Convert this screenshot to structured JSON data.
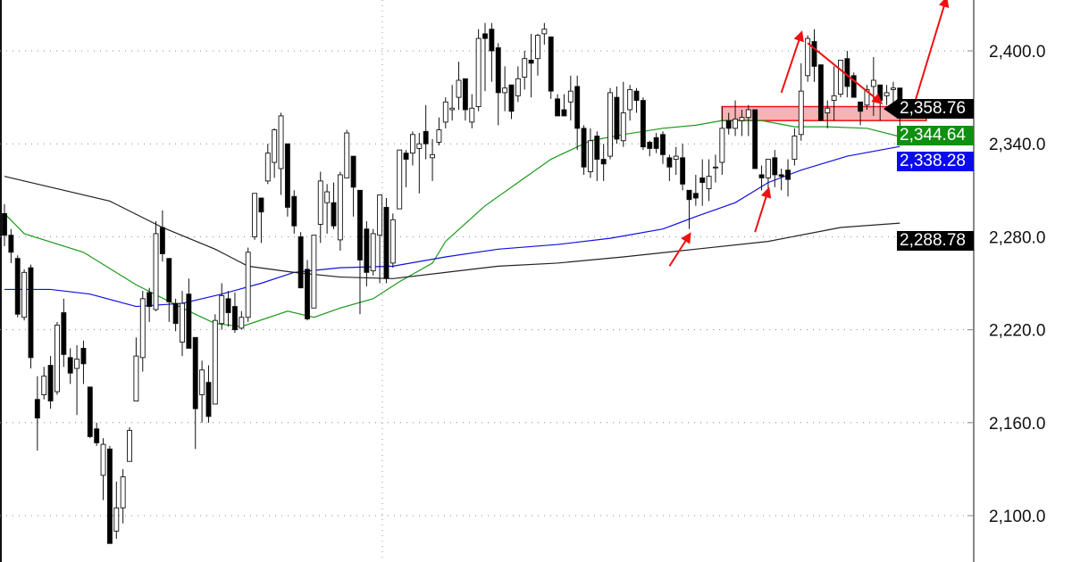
{
  "chart_data": {
    "type": "candlestick",
    "title": "",
    "xlabel": "",
    "ylabel": "",
    "ylim": [
      2070,
      2433
    ],
    "y_ticks": [
      "2,400.0",
      "2,340.0",
      "2,280.0",
      "2,220.0",
      "2,160.0",
      "2,100.0"
    ],
    "y_tick_values": [
      2400,
      2340,
      2280,
      2220,
      2160,
      2100
    ],
    "grid": "dotted horizontal",
    "colors": {
      "up_body": "#ffffff",
      "down_body": "#000000",
      "ma_green": "#1a9a1a",
      "ma_blue": "#1010e0",
      "ma_black": "#222222",
      "annotation": "#ee1111",
      "zone_fill": "#f4a0a0"
    },
    "ohlc_fields": [
      "open",
      "high",
      "low",
      "close"
    ],
    "candles": [
      [
        2295,
        2301,
        2274,
        2281
      ],
      [
        2281,
        2285,
        2263,
        2270
      ],
      [
        2266,
        2268,
        2228,
        2230
      ],
      [
        2228,
        2259,
        2226,
        2257
      ],
      [
        2260,
        2262,
        2195,
        2202
      ],
      [
        2175,
        2190,
        2142,
        2163
      ],
      [
        2178,
        2196,
        2175,
        2190
      ],
      [
        2197,
        2203,
        2169,
        2174
      ],
      [
        2180,
        2225,
        2178,
        2223
      ],
      [
        2231,
        2240,
        2196,
        2204
      ],
      [
        2202,
        2208,
        2185,
        2192
      ],
      [
        2195,
        2210,
        2165,
        2201
      ],
      [
        2208,
        2213,
        2185,
        2198
      ],
      [
        2183,
        2183,
        2150,
        2151
      ],
      [
        2156,
        2160,
        2145,
        2147
      ],
      [
        2126,
        2150,
        2110,
        2146
      ],
      [
        2143,
        2145,
        2082,
        2082
      ],
      [
        2090,
        2122,
        2085,
        2105
      ],
      [
        2105,
        2130,
        2095,
        2125
      ],
      [
        2135,
        2157,
        2135,
        2155
      ],
      [
        2174,
        2215,
        2174,
        2203
      ],
      [
        2202,
        2245,
        2193,
        2240
      ],
      [
        2244,
        2247,
        2225,
        2235
      ],
      [
        2233,
        2290,
        2232,
        2282
      ],
      [
        2286,
        2297,
        2264,
        2269
      ],
      [
        2266,
        2266,
        2225,
        2238
      ],
      [
        2237,
        2240,
        2219,
        2224
      ],
      [
        2212,
        2245,
        2203,
        2237
      ],
      [
        2243,
        2253,
        2208,
        2208
      ],
      [
        2215,
        2215,
        2143,
        2169
      ],
      [
        2178,
        2200,
        2160,
        2194
      ],
      [
        2186,
        2197,
        2160,
        2164
      ],
      [
        2172,
        2230,
        2172,
        2226
      ],
      [
        2224,
        2250,
        2220,
        2242
      ],
      [
        2240,
        2245,
        2222,
        2231
      ],
      [
        2235,
        2244,
        2218,
        2220
      ],
      [
        2221,
        2232,
        2220,
        2228
      ],
      [
        2228,
        2273,
        2225,
        2270
      ],
      [
        2280,
        2308,
        2278,
        2308
      ],
      [
        2305,
        2305,
        2276,
        2296
      ],
      [
        2316,
        2340,
        2314,
        2334
      ],
      [
        2328,
        2350,
        2318,
        2349
      ],
      [
        2324,
        2360,
        2307,
        2358
      ],
      [
        2340,
        2340,
        2293,
        2299
      ],
      [
        2306,
        2310,
        2282,
        2287
      ],
      [
        2280,
        2283,
        2247,
        2247
      ],
      [
        2259,
        2265,
        2226,
        2227
      ],
      [
        2234,
        2281,
        2234,
        2281
      ],
      [
        2288,
        2322,
        2276,
        2316
      ],
      [
        2302,
        2314,
        2282,
        2309
      ],
      [
        2302,
        2315,
        2285,
        2287
      ],
      [
        2278,
        2322,
        2271,
        2320
      ],
      [
        2318,
        2349,
        2318,
        2347
      ],
      [
        2332,
        2332,
        2293,
        2312
      ],
      [
        2310,
        2310,
        2230,
        2265
      ],
      [
        2285,
        2290,
        2248,
        2257
      ],
      [
        2258,
        2285,
        2255,
        2282
      ],
      [
        2281,
        2307,
        2250,
        2307
      ],
      [
        2299,
        2305,
        2250,
        2253
      ],
      [
        2263,
        2295,
        2260,
        2291
      ],
      [
        2298,
        2336,
        2298,
        2336
      ],
      [
        2334,
        2336,
        2312,
        2330
      ],
      [
        2334,
        2348,
        2326,
        2346
      ],
      [
        2337,
        2347,
        2308,
        2340
      ],
      [
        2348,
        2365,
        2330,
        2340
      ],
      [
        2331,
        2343,
        2316,
        2333
      ],
      [
        2341,
        2357,
        2339,
        2349
      ],
      [
        2354,
        2370,
        2350,
        2367
      ],
      [
        2362,
        2378,
        2355,
        2363
      ],
      [
        2370,
        2393,
        2362,
        2381
      ],
      [
        2382,
        2382,
        2355,
        2362
      ],
      [
        2354,
        2372,
        2350,
        2363
      ],
      [
        2364,
        2414,
        2361,
        2408
      ],
      [
        2411,
        2418,
        2374,
        2408
      ],
      [
        2414,
        2418,
        2380,
        2400
      ],
      [
        2402,
        2405,
        2352,
        2373
      ],
      [
        2373,
        2390,
        2361,
        2376
      ],
      [
        2378,
        2378,
        2356,
        2361
      ],
      [
        2371,
        2390,
        2367,
        2382
      ],
      [
        2383,
        2400,
        2375,
        2395
      ],
      [
        2394,
        2411,
        2370,
        2392
      ],
      [
        2395,
        2411,
        2384,
        2410
      ],
      [
        2411,
        2418,
        2404,
        2414
      ],
      [
        2409,
        2409,
        2369,
        2374
      ],
      [
        2369,
        2372,
        2358,
        2358
      ],
      [
        2362,
        2372,
        2358,
        2358
      ],
      [
        2367,
        2384,
        2355,
        2374
      ],
      [
        2377,
        2384,
        2336,
        2350
      ],
      [
        2350,
        2352,
        2320,
        2325
      ],
      [
        2322,
        2350,
        2318,
        2342
      ],
      [
        2345,
        2348,
        2316,
        2330
      ],
      [
        2330,
        2340,
        2316,
        2327
      ],
      [
        2332,
        2376,
        2330,
        2373
      ],
      [
        2370,
        2377,
        2340,
        2343
      ],
      [
        2342,
        2380,
        2338,
        2360
      ],
      [
        2362,
        2378,
        2355,
        2375
      ],
      [
        2374,
        2376,
        2360,
        2368
      ],
      [
        2368,
        2370,
        2336,
        2338
      ],
      [
        2341,
        2342,
        2332,
        2337
      ],
      [
        2344,
        2347,
        2334,
        2337
      ],
      [
        2346,
        2348,
        2327,
        2333
      ],
      [
        2331,
        2333,
        2316,
        2325
      ],
      [
        2330,
        2338,
        2320,
        2332
      ],
      [
        2331,
        2340,
        2310,
        2314
      ],
      [
        2310,
        2310,
        2285,
        2304
      ],
      [
        2308,
        2320,
        2300,
        2305
      ],
      [
        2318,
        2330,
        2300,
        2315
      ],
      [
        2311,
        2330,
        2303,
        2319
      ],
      [
        2325,
        2333,
        2315,
        2325
      ],
      [
        2328,
        2364,
        2320,
        2350
      ],
      [
        2355,
        2360,
        2346,
        2350
      ],
      [
        2350,
        2368,
        2345,
        2356
      ],
      [
        2355,
        2362,
        2345,
        2357
      ],
      [
        2357,
        2365,
        2345,
        2362
      ],
      [
        2362,
        2362,
        2324,
        2324
      ],
      [
        2320,
        2326,
        2310,
        2318
      ],
      [
        2318,
        2330,
        2310,
        2330
      ],
      [
        2331,
        2336,
        2312,
        2320
      ],
      [
        2320,
        2324,
        2310,
        2319
      ],
      [
        2323,
        2330,
        2306,
        2317
      ],
      [
        2330,
        2350,
        2326,
        2345
      ],
      [
        2346,
        2392,
        2342,
        2374
      ],
      [
        2384,
        2410,
        2380,
        2408
      ],
      [
        2406,
        2414,
        2380,
        2390
      ],
      [
        2391,
        2391,
        2355,
        2355
      ],
      [
        2360,
        2368,
        2350,
        2363
      ],
      [
        2368,
        2390,
        2355,
        2371
      ],
      [
        2372,
        2394,
        2370,
        2394
      ],
      [
        2395,
        2400,
        2370,
        2377
      ],
      [
        2384,
        2386,
        2370,
        2370
      ],
      [
        2367,
        2367,
        2352,
        2361
      ],
      [
        2365,
        2378,
        2362,
        2375
      ],
      [
        2377,
        2396,
        2358,
        2381
      ],
      [
        2378,
        2378,
        2355,
        2368
      ],
      [
        2371,
        2378,
        2365,
        2373
      ],
      [
        2375,
        2380,
        2366,
        2376
      ],
      [
        2376,
        2376,
        2350,
        2358.76
      ]
    ],
    "moving_averages": [
      {
        "color": "#1a9a1a",
        "last_value": "2,344.64",
        "points": [
          [
            0,
            2295
          ],
          [
            3,
            2282
          ],
          [
            12,
            2270
          ],
          [
            20,
            2249
          ],
          [
            27,
            2234
          ],
          [
            32,
            2224
          ],
          [
            36,
            2222
          ],
          [
            43,
            2232
          ],
          [
            47,
            2228
          ],
          [
            51,
            2234
          ],
          [
            56,
            2240
          ],
          [
            60,
            2251
          ],
          [
            65,
            2263
          ],
          [
            67,
            2277
          ],
          [
            73,
            2300
          ],
          [
            78,
            2315
          ],
          [
            83,
            2330
          ],
          [
            89,
            2342
          ],
          [
            94,
            2346
          ],
          [
            100,
            2350
          ],
          [
            105,
            2352
          ],
          [
            109,
            2355
          ],
          [
            115,
            2355
          ],
          [
            120,
            2351
          ],
          [
            125,
            2351
          ],
          [
            131,
            2350
          ],
          [
            136,
            2344.64
          ]
        ]
      },
      {
        "color": "#1010e0",
        "last_value": "2,338.28",
        "points": [
          [
            0,
            2246
          ],
          [
            7,
            2246
          ],
          [
            13,
            2243
          ],
          [
            20,
            2235
          ],
          [
            27,
            2237
          ],
          [
            33,
            2243
          ],
          [
            39,
            2250
          ],
          [
            44,
            2257
          ],
          [
            51,
            2260
          ],
          [
            59,
            2261
          ],
          [
            67,
            2267
          ],
          [
            75,
            2272
          ],
          [
            84,
            2275
          ],
          [
            92,
            2279
          ],
          [
            100,
            2285
          ],
          [
            105,
            2293
          ],
          [
            111,
            2302
          ],
          [
            116,
            2315
          ],
          [
            121,
            2323
          ],
          [
            128,
            2332
          ],
          [
            136,
            2338.28
          ]
        ]
      },
      {
        "color": "#222222",
        "last_value": "2,288.78",
        "points": [
          [
            0,
            2319
          ],
          [
            7,
            2312
          ],
          [
            16,
            2303
          ],
          [
            24,
            2286
          ],
          [
            32,
            2272
          ],
          [
            37,
            2261
          ],
          [
            44,
            2257
          ],
          [
            51,
            2254
          ],
          [
            59,
            2253
          ],
          [
            67,
            2257
          ],
          [
            75,
            2261
          ],
          [
            84,
            2263
          ],
          [
            94,
            2267
          ],
          [
            105,
            2272
          ],
          [
            116,
            2277
          ],
          [
            127,
            2286
          ],
          [
            136,
            2288.78
          ]
        ]
      }
    ],
    "last_price": "2,358.76",
    "annotations": {
      "zone": {
        "from_index": 109,
        "to_index": 140,
        "low": 2355,
        "high": 2364
      },
      "arrows": [
        {
          "from": [
            101,
            2261
          ],
          "to": [
            104,
            2281
          ]
        },
        {
          "from": [
            114,
            2283
          ],
          "to": [
            116,
            2310
          ]
        },
        {
          "from": [
            118,
            2373
          ],
          "to": [
            121,
            2411
          ]
        },
        {
          "from": [
            122,
            2405
          ],
          "to": [
            133,
            2367
          ]
        },
        {
          "from": [
            138,
            2363
          ],
          "to": [
            143,
            2433
          ]
        }
      ]
    }
  }
}
